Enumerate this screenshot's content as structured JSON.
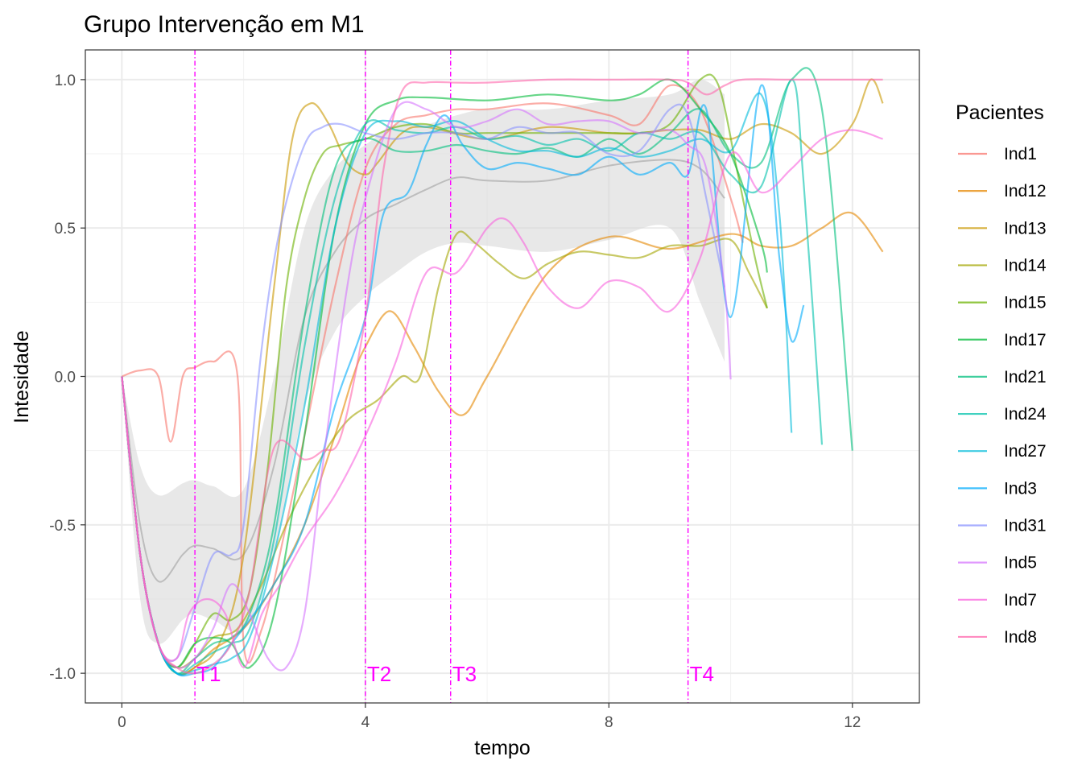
{
  "chart_data": {
    "type": "line",
    "title": "Grupo Intervenção em M1",
    "xlabel": "tempo",
    "ylabel": "Intesidade",
    "xlim": [
      -0.6,
      13.1
    ],
    "ylim": [
      -1.1,
      1.1
    ],
    "xticks": [
      0,
      4,
      8,
      12
    ],
    "xtick_labels": [
      "0",
      "4",
      "8",
      "12"
    ],
    "yticks": [
      -1.0,
      -0.5,
      0.0,
      0.5,
      1.0
    ],
    "ytick_labels": [
      "-1.0",
      "-0.5",
      "0.0",
      "0.5",
      "1.0"
    ],
    "grid": true,
    "legend_position": "right",
    "legend_title": "Pacientes",
    "vlines": [
      {
        "x": 1.2,
        "label": "T1",
        "color": "#ff00ff"
      },
      {
        "x": 4.0,
        "label": "T2",
        "color": "#ff00ff"
      },
      {
        "x": 5.4,
        "label": "T3",
        "color": "#ff00ff"
      },
      {
        "x": 9.3,
        "label": "T4",
        "color": "#ff00ff"
      }
    ],
    "smooth": {
      "color": "#bdbdbd",
      "band_color": "#d9d9d9",
      "x": [
        0,
        0.3,
        0.6,
        1.0,
        1.2,
        1.5,
        2.0,
        2.5,
        3.0,
        3.5,
        4.0,
        4.5,
        5.0,
        5.5,
        6.0,
        7.0,
        8.0,
        9.0,
        9.5,
        9.9
      ],
      "y": [
        0,
        -0.5,
        -0.69,
        -0.6,
        -0.57,
        -0.58,
        -0.6,
        -0.3,
        0.2,
        0.42,
        0.53,
        0.58,
        0.63,
        0.67,
        0.66,
        0.66,
        0.71,
        0.73,
        0.7,
        0.6
      ],
      "lower": [
        0,
        -0.75,
        -0.9,
        -0.82,
        -0.8,
        -0.82,
        -0.85,
        -0.6,
        -0.1,
        0.15,
        0.27,
        0.35,
        0.42,
        0.45,
        0.44,
        0.42,
        0.46,
        0.5,
        0.25,
        0.05
      ],
      "upper": [
        0,
        -0.3,
        -0.4,
        -0.36,
        -0.35,
        -0.37,
        -0.38,
        0.0,
        0.5,
        0.7,
        0.78,
        0.85,
        0.85,
        0.88,
        0.9,
        0.9,
        0.93,
        0.95,
        1.0,
        0.95
      ]
    },
    "series": [
      {
        "name": "Ind1",
        "color": "#F8766D",
        "x": [
          0,
          0.3,
          0.6,
          0.8,
          1.0,
          1.2,
          1.5,
          1.9,
          2.0,
          2.3,
          2.7,
          3.0,
          3.5,
          4.0,
          4.5,
          5.0,
          5.5,
          6.0,
          7.0,
          8.0,
          8.5,
          9.0,
          9.5,
          10.0,
          10.2
        ],
        "y": [
          0,
          0.02,
          0.0,
          -0.22,
          0.0,
          0.03,
          0.05,
          0.0,
          -0.9,
          -0.85,
          -0.5,
          -0.2,
          0.3,
          0.7,
          0.85,
          0.88,
          0.9,
          0.9,
          0.92,
          0.88,
          0.85,
          0.98,
          0.9,
          0.6,
          0.45
        ]
      },
      {
        "name": "Ind12",
        "color": "#E58700",
        "x": [
          0,
          0.3,
          0.6,
          0.9,
          1.2,
          1.5,
          2.0,
          2.5,
          3.0,
          3.5,
          3.8,
          4.0,
          4.4,
          4.8,
          5.2,
          5.6,
          6.0,
          7.0,
          8.0,
          9.0,
          10.0,
          10.5,
          11.0,
          11.5,
          12.0,
          12.5
        ],
        "y": [
          0,
          -0.6,
          -0.9,
          -1.0,
          -0.98,
          -0.92,
          -0.85,
          -0.7,
          -0.5,
          -0.2,
          0.0,
          0.1,
          0.22,
          0.1,
          -0.05,
          -0.13,
          0.0,
          0.35,
          0.47,
          0.43,
          0.48,
          0.44,
          0.44,
          0.5,
          0.55,
          0.42
        ]
      },
      {
        "name": "Ind13",
        "color": "#C99800",
        "x": [
          0,
          0.3,
          0.6,
          0.9,
          1.2,
          1.6,
          2.0,
          2.5,
          2.8,
          3.1,
          3.4,
          3.7,
          4.0,
          4.2,
          4.6,
          5.0,
          6.0,
          7.0,
          8.0,
          8.5,
          9.0,
          9.5,
          10.0,
          10.5,
          11.0,
          11.5,
          12.0,
          12.3,
          12.5
        ],
        "y": [
          0,
          -0.6,
          -0.9,
          -1.0,
          -0.98,
          -0.9,
          -0.6,
          0.3,
          0.8,
          0.92,
          0.85,
          0.72,
          0.68,
          0.72,
          0.82,
          0.84,
          0.8,
          0.84,
          0.82,
          0.82,
          0.83,
          0.83,
          0.8,
          0.85,
          0.82,
          0.75,
          0.85,
          1.0,
          0.92
        ]
      },
      {
        "name": "Ind14",
        "color": "#A3A500",
        "x": [
          0,
          0.3,
          0.6,
          0.9,
          1.2,
          1.5,
          1.9,
          2.3,
          2.7,
          3.2,
          3.7,
          4.2,
          4.6,
          4.9,
          5.2,
          5.5,
          5.8,
          6.2,
          6.6,
          7.0,
          7.5,
          8.0,
          8.5,
          9.0,
          9.5,
          10.0,
          10.3,
          10.6
        ],
        "y": [
          0,
          -0.6,
          -0.9,
          -0.98,
          -0.95,
          -0.88,
          -0.85,
          -0.7,
          -0.5,
          -0.3,
          -0.15,
          -0.08,
          0.0,
          0.0,
          0.3,
          0.48,
          0.45,
          0.38,
          0.33,
          0.38,
          0.42,
          0.41,
          0.4,
          0.44,
          0.44,
          0.46,
          0.35,
          0.23
        ]
      },
      {
        "name": "Ind15",
        "color": "#6BB100",
        "x": [
          0,
          0.3,
          0.6,
          0.9,
          1.2,
          1.5,
          1.8,
          2.1,
          2.4,
          2.7,
          3.0,
          3.3,
          3.6,
          4.0,
          4.5,
          5.0,
          5.5,
          6.0,
          7.0,
          8.0,
          8.5,
          9.0,
          9.5,
          9.8,
          10.1,
          10.4,
          10.6
        ],
        "y": [
          0,
          -0.6,
          -0.9,
          -0.98,
          -0.9,
          -0.8,
          -0.82,
          -0.72,
          -0.3,
          0.3,
          0.6,
          0.75,
          0.78,
          0.8,
          0.84,
          0.85,
          0.82,
          0.82,
          0.82,
          0.82,
          0.82,
          0.85,
          1.0,
          0.98,
          0.7,
          0.4,
          0.23
        ]
      },
      {
        "name": "Ind17",
        "color": "#00BA38",
        "x": [
          0,
          0.3,
          0.6,
          0.9,
          1.2,
          1.5,
          1.8,
          2.1,
          2.5,
          3.0,
          3.5,
          4.0,
          4.5,
          5.0,
          6.0,
          7.0,
          8.0,
          8.5,
          9.0,
          9.5,
          10.0,
          10.5,
          10.6
        ],
        "y": [
          0,
          -0.6,
          -0.9,
          -0.98,
          -0.9,
          -0.88,
          -0.9,
          -0.98,
          -0.8,
          -0.2,
          0.5,
          0.85,
          0.93,
          0.94,
          0.93,
          0.95,
          0.93,
          0.95,
          1.0,
          0.9,
          0.75,
          0.45,
          0.35
        ]
      },
      {
        "name": "Ind21",
        "color": "#00BF7D",
        "x": [
          0,
          0.3,
          0.6,
          0.9,
          1.2,
          1.5,
          1.8,
          2.1,
          2.5,
          3.0,
          3.5,
          4.0,
          4.5,
          5.0,
          5.5,
          6.0,
          6.5,
          7.0,
          7.5,
          8.0,
          8.5,
          9.0,
          9.5,
          10.0,
          10.5,
          11.0,
          11.5,
          12.0
        ],
        "y": [
          0,
          -0.6,
          -0.9,
          -1.0,
          -0.95,
          -0.9,
          -0.88,
          -0.8,
          -0.5,
          0.2,
          0.7,
          0.8,
          0.76,
          0.76,
          0.78,
          0.76,
          0.75,
          0.77,
          0.74,
          0.8,
          0.75,
          0.82,
          0.9,
          0.75,
          0.72,
          1.0,
          0.9,
          -0.25
        ]
      },
      {
        "name": "Ind24",
        "color": "#00C1AB",
        "x": [
          0,
          0.3,
          0.6,
          0.9,
          1.2,
          1.5,
          1.8,
          2.1,
          2.5,
          3.0,
          3.5,
          4.0,
          4.5,
          5.0,
          5.5,
          6.0,
          6.5,
          7.0,
          7.5,
          8.0,
          8.5,
          9.0,
          9.5,
          10.0,
          10.5,
          11.0,
          11.2,
          11.5
        ],
        "y": [
          0,
          -0.6,
          -0.9,
          -1.0,
          -0.97,
          -0.93,
          -0.9,
          -0.85,
          -0.55,
          0.1,
          0.6,
          0.85,
          0.83,
          0.82,
          0.84,
          0.8,
          0.81,
          0.78,
          0.8,
          0.76,
          0.82,
          0.8,
          0.82,
          0.68,
          0.64,
          1.0,
          0.65,
          -0.23
        ]
      },
      {
        "name": "Ind27",
        "color": "#00BBDA",
        "x": [
          0,
          0.3,
          0.6,
          0.9,
          1.2,
          1.5,
          1.8,
          2.1,
          2.5,
          3.0,
          3.5,
          4.0,
          4.5,
          5.0,
          5.5,
          6.0,
          6.5,
          7.0,
          7.5,
          8.0,
          8.5,
          9.0,
          9.5,
          10.0,
          10.5,
          10.8,
          11.0
        ],
        "y": [
          0,
          -0.6,
          -0.9,
          -1.0,
          -0.99,
          -0.97,
          -0.95,
          -0.88,
          -0.6,
          -0.1,
          0.5,
          0.82,
          0.86,
          0.84,
          0.86,
          0.8,
          0.76,
          0.76,
          0.74,
          0.77,
          0.74,
          0.76,
          0.8,
          0.76,
          0.95,
          0.55,
          -0.19
        ]
      },
      {
        "name": "Ind3",
        "color": "#00ACFC",
        "x": [
          0,
          0.3,
          0.6,
          0.9,
          1.2,
          1.5,
          1.8,
          2.1,
          2.5,
          3.0,
          3.5,
          4.0,
          4.3,
          4.7,
          5.0,
          5.3,
          5.6,
          6.0,
          6.5,
          7.0,
          7.5,
          8.0,
          8.5,
          9.0,
          9.3,
          9.6,
          10.0,
          10.5,
          10.8,
          11.0,
          11.2
        ],
        "y": [
          0,
          -0.6,
          -0.9,
          -1.0,
          -1.0,
          -0.98,
          -0.9,
          -0.82,
          -0.7,
          -0.5,
          -0.1,
          0.2,
          0.55,
          0.62,
          0.78,
          0.88,
          0.78,
          0.7,
          0.72,
          0.7,
          0.68,
          0.74,
          0.68,
          0.72,
          0.68,
          0.9,
          0.2,
          0.98,
          0.4,
          0.12,
          0.24
        ]
      },
      {
        "name": "Ind31",
        "color": "#8B93FF",
        "x": [
          0,
          0.3,
          0.6,
          0.9,
          1.2,
          1.5,
          1.8,
          2.0,
          2.3,
          2.6,
          3.0,
          3.3,
          3.6,
          4.0,
          4.5,
          5.0,
          5.5,
          6.0,
          6.5,
          7.0,
          7.5,
          8.0,
          8.5,
          9.0,
          9.3,
          9.6,
          9.9
        ],
        "y": [
          0,
          -0.6,
          -0.9,
          -0.95,
          -0.78,
          -0.6,
          -0.6,
          -0.5,
          0.1,
          0.5,
          0.78,
          0.84,
          0.85,
          0.82,
          0.8,
          0.82,
          0.82,
          0.8,
          0.84,
          0.82,
          0.82,
          0.75,
          0.76,
          0.9,
          0.88,
          0.6,
          0.3
        ]
      },
      {
        "name": "Ind5",
        "color": "#D575FE",
        "x": [
          0,
          0.3,
          0.6,
          0.9,
          1.2,
          1.5,
          1.8,
          2.1,
          2.4,
          2.7,
          3.0,
          3.3,
          3.7,
          4.0,
          4.5,
          5.0,
          5.5,
          6.0,
          6.5,
          7.0,
          7.5,
          8.0,
          8.5,
          9.0,
          9.3,
          9.6,
          9.9,
          10.0
        ],
        "y": [
          0,
          -0.6,
          -0.9,
          -0.98,
          -0.95,
          -0.85,
          -0.7,
          -0.8,
          -0.95,
          -0.98,
          -0.8,
          -0.3,
          0.3,
          0.6,
          0.9,
          0.9,
          0.84,
          0.86,
          0.9,
          0.85,
          0.86,
          0.86,
          0.82,
          0.83,
          0.78,
          0.7,
          0.3,
          -0.01
        ]
      },
      {
        "name": "Ind7",
        "color": "#F962DD",
        "x": [
          0,
          0.3,
          0.6,
          0.9,
          1.1,
          1.4,
          1.7,
          2.0,
          2.3,
          2.6,
          3.0,
          3.5,
          4.0,
          4.5,
          5.0,
          5.5,
          6.0,
          6.3,
          6.6,
          7.0,
          7.5,
          8.0,
          8.5,
          9.0,
          9.5,
          10.0,
          10.5,
          11.0,
          11.5,
          12.0,
          12.5
        ],
        "y": [
          0,
          -0.6,
          -0.9,
          -0.95,
          -0.8,
          -0.75,
          -0.8,
          -0.98,
          -0.8,
          -0.7,
          -0.55,
          -0.4,
          -0.2,
          0.05,
          0.35,
          0.35,
          0.5,
          0.53,
          0.45,
          0.3,
          0.23,
          0.32,
          0.3,
          0.22,
          0.4,
          0.75,
          0.62,
          0.7,
          0.8,
          0.83,
          0.8
        ]
      },
      {
        "name": "Ind8",
        "color": "#FF65AC",
        "x": [
          0,
          0.3,
          0.6,
          0.9,
          1.2,
          1.5,
          1.8,
          2.1,
          2.5,
          3.0,
          3.3,
          3.6,
          4.0,
          4.3,
          4.6,
          5.0,
          5.5,
          6.0,
          7.0,
          8.0,
          9.0,
          9.3,
          9.6,
          9.9,
          10.2,
          11.0,
          12.0,
          12.5
        ],
        "y": [
          0,
          -0.6,
          -0.9,
          -0.98,
          -1.0,
          -0.97,
          -0.9,
          -0.72,
          -0.24,
          -0.28,
          -0.25,
          -0.2,
          0.2,
          0.7,
          0.96,
          0.99,
          0.99,
          0.99,
          1.0,
          1.0,
          1.0,
          0.99,
          0.95,
          0.98,
          1.0,
          1.0,
          1.0,
          1.0
        ]
      }
    ]
  }
}
